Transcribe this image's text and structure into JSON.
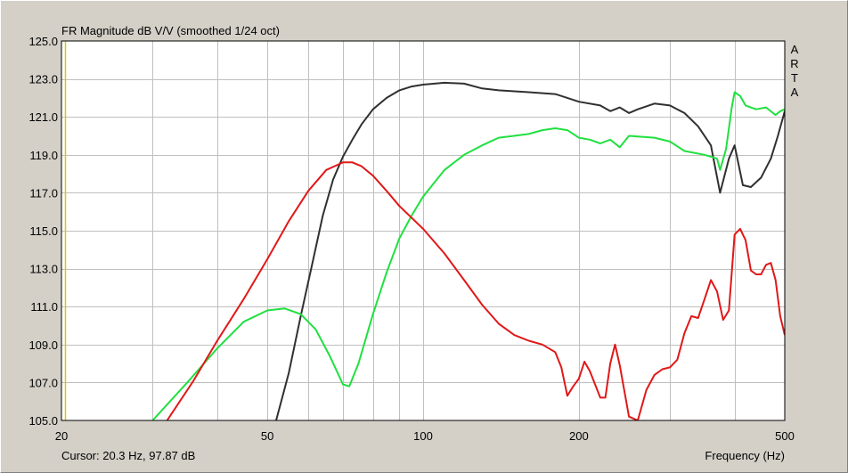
{
  "chart_data": {
    "type": "line",
    "title": "FR Magnitude dB V/V (smoothed 1/24 oct)",
    "watermark": [
      "A",
      "R",
      "T",
      "A"
    ],
    "xlabel": "Frequency (Hz)",
    "ylabel": "",
    "xscale": "log",
    "xlim": [
      20,
      500
    ],
    "ylim": [
      105.0,
      125.0
    ],
    "xticks": [
      20,
      50,
      100,
      200,
      500
    ],
    "yticks": [
      "125.0",
      "123.0",
      "121.0",
      "119.0",
      "117.0",
      "115.0",
      "113.0",
      "111.0",
      "109.0",
      "107.0",
      "105.0"
    ],
    "grid": true,
    "cursor_text": "Cursor: 20.3 Hz, 97.87 dB",
    "colors": {
      "plot_bg": "#ffffff",
      "window_bg": "#d4d0c8",
      "grid": "#c0c0c0",
      "cursor": "#d8c800"
    },
    "series": [
      {
        "color": "#303030",
        "x": [
          52,
          55,
          58,
          61,
          64,
          67,
          70,
          73,
          76,
          80,
          85,
          90,
          95,
          100,
          110,
          120,
          130,
          140,
          160,
          180,
          190,
          200,
          220,
          230,
          240,
          250,
          260,
          280,
          300,
          320,
          340,
          360,
          375,
          390,
          400,
          415,
          430,
          450,
          470,
          485,
          500
        ],
        "y": [
          105.0,
          107.5,
          110.5,
          113.2,
          115.8,
          117.7,
          118.9,
          119.8,
          120.6,
          121.4,
          122.0,
          122.4,
          122.6,
          122.7,
          122.8,
          122.75,
          122.5,
          122.4,
          122.3,
          122.2,
          122.0,
          121.8,
          121.6,
          121.3,
          121.5,
          121.2,
          121.4,
          121.7,
          121.6,
          121.2,
          120.5,
          119.5,
          117.0,
          118.8,
          119.5,
          117.4,
          117.3,
          117.8,
          118.8,
          120.0,
          121.3
        ]
      },
      {
        "color": "#20e040",
        "x": [
          30,
          35,
          40,
          45,
          50,
          54,
          58,
          62,
          66,
          70,
          72,
          75,
          80,
          85,
          90,
          95,
          100,
          110,
          120,
          130,
          140,
          150,
          160,
          170,
          180,
          190,
          200,
          210,
          220,
          230,
          240,
          250,
          280,
          300,
          320,
          350,
          370,
          375,
          385,
          395,
          400,
          410,
          420,
          440,
          460,
          480,
          490,
          500
        ],
        "y": [
          105.0,
          107.0,
          108.8,
          110.2,
          110.8,
          110.9,
          110.6,
          109.8,
          108.4,
          106.9,
          106.8,
          108.0,
          110.6,
          112.8,
          114.6,
          115.8,
          116.8,
          118.2,
          119.0,
          119.5,
          119.9,
          120.0,
          120.1,
          120.3,
          120.4,
          120.3,
          119.9,
          119.8,
          119.6,
          119.8,
          119.4,
          120.0,
          119.9,
          119.7,
          119.2,
          119.0,
          118.8,
          118.2,
          119.3,
          121.5,
          122.3,
          122.1,
          121.6,
          121.4,
          121.5,
          121.1,
          121.3,
          121.4
        ]
      },
      {
        "color": "#e01818",
        "x": [
          32,
          36,
          40,
          45,
          50,
          55,
          60,
          65,
          70,
          73,
          76,
          80,
          85,
          90,
          100,
          110,
          120,
          130,
          140,
          150,
          160,
          170,
          180,
          185,
          190,
          195,
          200,
          205,
          210,
          220,
          225,
          230,
          235,
          240,
          250,
          260,
          270,
          280,
          290,
          300,
          310,
          320,
          330,
          340,
          350,
          360,
          370,
          380,
          390,
          400,
          410,
          420,
          430,
          440,
          450,
          460,
          470,
          480,
          490,
          500
        ],
        "y": [
          105.0,
          107.1,
          109.2,
          111.4,
          113.5,
          115.5,
          117.1,
          118.2,
          118.6,
          118.6,
          118.4,
          117.9,
          117.1,
          116.3,
          115.1,
          113.8,
          112.4,
          111.1,
          110.1,
          109.5,
          109.2,
          109.0,
          108.6,
          107.8,
          106.3,
          106.8,
          107.2,
          108.1,
          107.6,
          106.2,
          106.2,
          108.0,
          109.0,
          107.9,
          105.2,
          105.0,
          106.6,
          107.4,
          107.7,
          107.8,
          108.2,
          109.6,
          110.5,
          110.4,
          111.4,
          112.4,
          111.8,
          110.3,
          110.8,
          114.8,
          115.1,
          114.5,
          112.9,
          112.7,
          112.7,
          113.2,
          113.3,
          112.4,
          110.5,
          109.5
        ]
      }
    ]
  }
}
